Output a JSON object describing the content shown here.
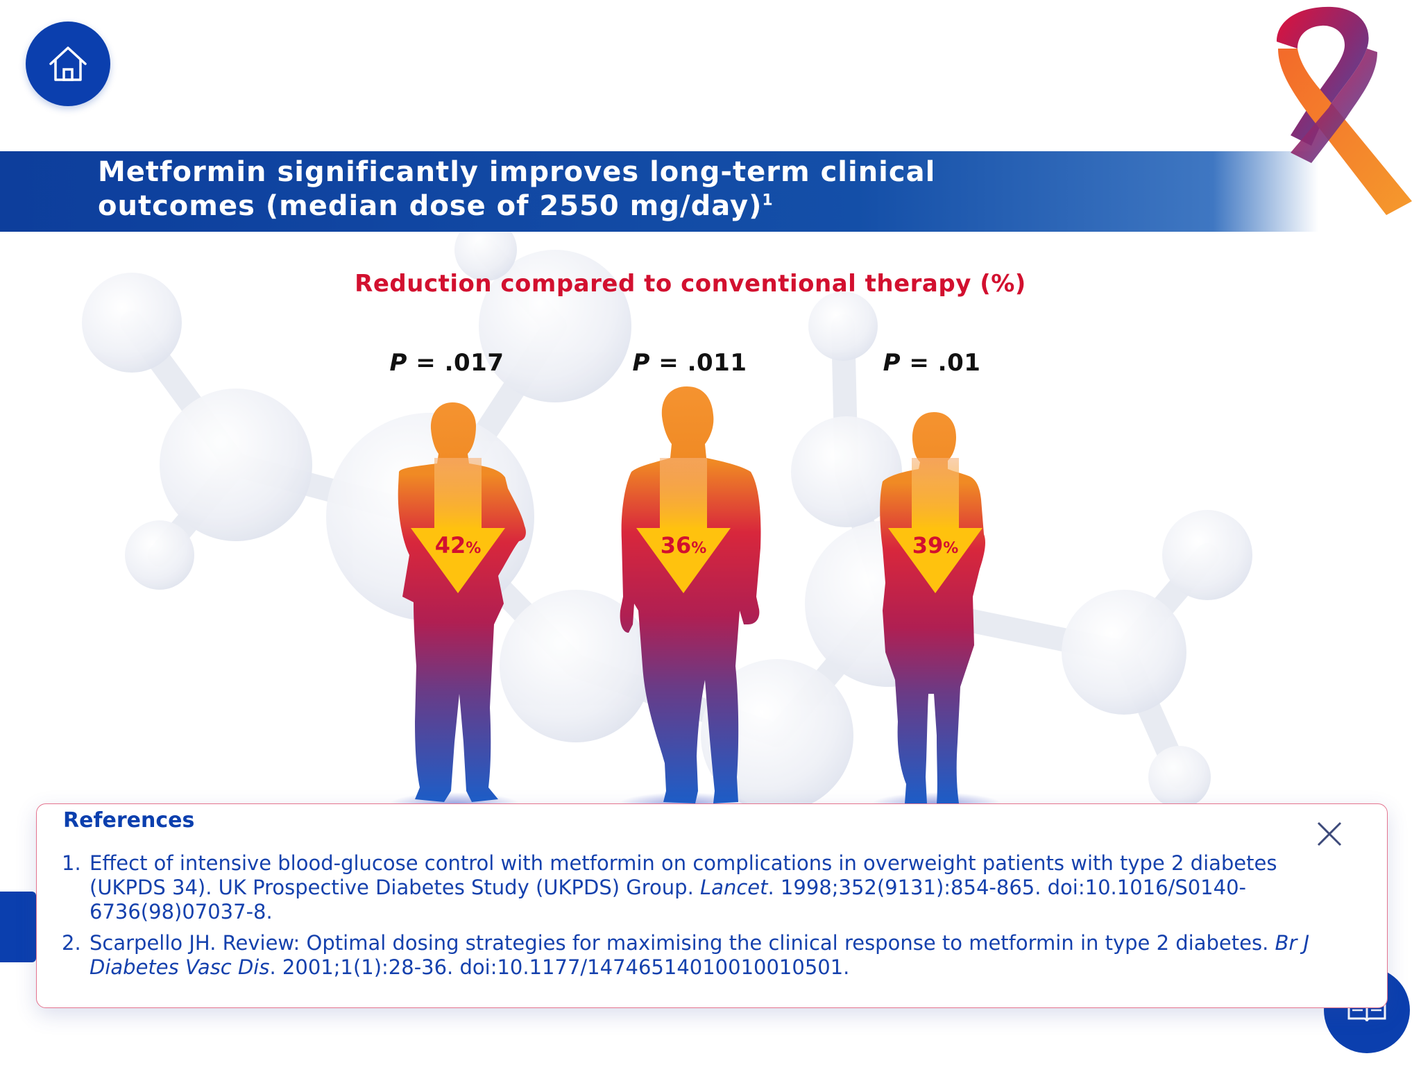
{
  "header": {
    "title_line1": "Metformin significantly improves long-term clinical",
    "title_line2": "outcomes (median dose of 2550 mg/day)",
    "title_footnote": "1"
  },
  "chart_data": {
    "type": "bar",
    "title": "Reduction compared to conventional therapy (%)",
    "categories": [
      "",
      "",
      ""
    ],
    "values": [
      42,
      36,
      39
    ],
    "unit": "%",
    "p_values": [
      ".017",
      ".011",
      ".01"
    ],
    "p_label": "P"
  },
  "figures": [
    {
      "value": "42",
      "unit": "%",
      "p": ".017"
    },
    {
      "value": "36",
      "unit": "%",
      "p": ".011"
    },
    {
      "value": "39",
      "unit": "%",
      "p": ".01"
    }
  ],
  "references": {
    "heading": "References",
    "items": [
      {
        "num": "1.",
        "text_a": "Effect of intensive blood-glucose control with metformin on complications in overweight patients with type 2 diabetes (UKPDS 34). UK Prospective Diabetes Study (UKPDS) Group. ",
        "journal": "Lancet",
        "text_b": ". 1998;352(9131):854-865. doi:10.1016/S0140-6736(98)07037-8."
      },
      {
        "num": "2.",
        "text_a": "Scarpello JH. Review: Optimal dosing strategies for maximising the clinical response to metformin in type 2 diabetes. ",
        "journal": "Br J Diabetes Vasc Dis",
        "text_b": ". 2001;1(1):28-36. doi:10.1177/14746514010010010501."
      }
    ]
  },
  "icons": {
    "home": "home-icon",
    "close": "close-icon",
    "book": "book-icon",
    "ribbon": "awareness-ribbon-logo"
  },
  "colors": {
    "brand_blue": "#0b3fae",
    "accent_red": "#d2102f",
    "arrow_yellow": "#ffc20e",
    "figure_top": "#f08a24",
    "figure_mid": "#c8194a",
    "figure_bottom": "#1f5fc8"
  }
}
